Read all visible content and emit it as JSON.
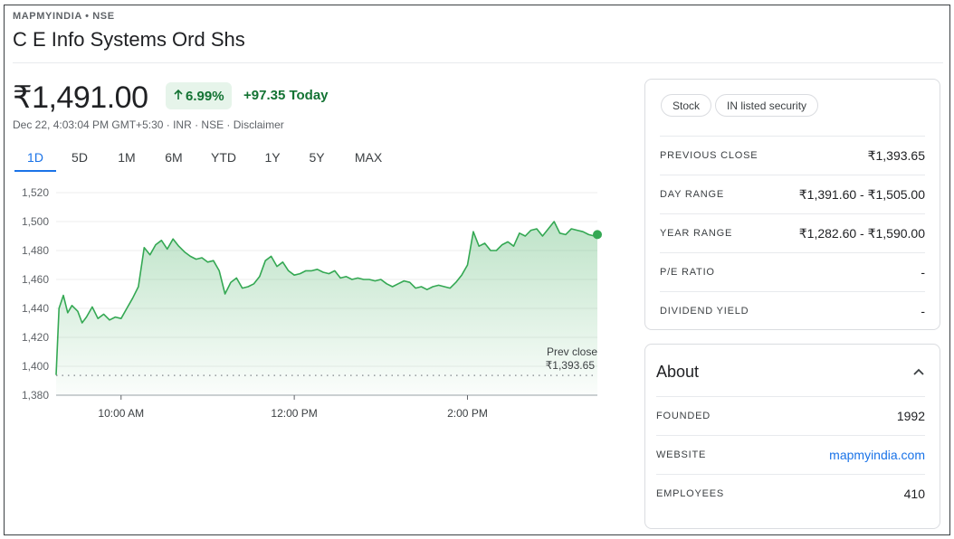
{
  "header": {
    "ticker": "MAPMYINDIA • NSE",
    "company": "C E Info Systems Ord Shs"
  },
  "quote": {
    "price": "₹1,491.00",
    "change_pct": "6.99%",
    "change_abs": "+97.35",
    "change_period": "Today",
    "meta": "Dec 22, 4:03:04 PM GMT+5:30 · INR · NSE · Disclaimer"
  },
  "tabs": [
    {
      "label": "1D",
      "active": true
    },
    {
      "label": "5D"
    },
    {
      "label": "1M"
    },
    {
      "label": "6M"
    },
    {
      "label": "YTD"
    },
    {
      "label": "1Y"
    },
    {
      "label": "5Y"
    },
    {
      "label": "MAX"
    }
  ],
  "colors": {
    "up": "#137333",
    "line": "#34a853",
    "accent": "#1a73e8"
  },
  "chart_data": {
    "type": "area",
    "ylim": [
      1380,
      1520
    ],
    "y_ticks": [
      "1,520",
      "1,500",
      "1,480",
      "1,460",
      "1,440",
      "1,420",
      "1,400",
      "1,380"
    ],
    "y_tick_values": [
      1520,
      1500,
      1480,
      1460,
      1440,
      1420,
      1400,
      1380
    ],
    "x_ticks": [
      "10:00 AM",
      "12:00 PM",
      "2:00 PM"
    ],
    "x_tick_values": [
      "10:00",
      "12:00",
      "14:00"
    ],
    "xlim": [
      "09:15",
      "15:30"
    ],
    "prev_close_label": "Prev close",
    "prev_close_value_text": "₹1,393.65",
    "prev_close_value": 1393.65,
    "grid": true,
    "series": [
      {
        "x": [
          "09:15",
          "09:17",
          "09:20",
          "09:23",
          "09:26",
          "09:30",
          "09:33",
          "09:36",
          "09:40",
          "09:44",
          "09:48",
          "09:52",
          "09:56",
          "10:00",
          "10:04",
          "10:08",
          "10:12",
          "10:16",
          "10:20",
          "10:24",
          "10:28",
          "10:32",
          "10:36",
          "10:40",
          "10:44",
          "10:48",
          "10:52",
          "10:56",
          "11:00",
          "11:04",
          "11:08",
          "11:12",
          "11:16",
          "11:20",
          "11:24",
          "11:28",
          "11:32",
          "11:36",
          "11:40",
          "11:44",
          "11:48",
          "11:52",
          "11:56",
          "12:00",
          "12:04",
          "12:08",
          "12:12",
          "12:16",
          "12:20",
          "12:24",
          "12:28",
          "12:32",
          "12:36",
          "12:40",
          "12:44",
          "12:48",
          "12:52",
          "12:56",
          "13:00",
          "13:04",
          "13:08",
          "13:12",
          "13:16",
          "13:20",
          "13:24",
          "13:28",
          "13:32",
          "13:36",
          "13:40",
          "13:44",
          "13:48",
          "13:52",
          "13:56",
          "14:00",
          "14:04",
          "14:08",
          "14:12",
          "14:16",
          "14:20",
          "14:24",
          "14:28",
          "14:32",
          "14:36",
          "14:40",
          "14:44",
          "14:48",
          "14:52",
          "14:56",
          "15:00",
          "15:04",
          "15:08",
          "15:12",
          "15:16",
          "15:20",
          "15:24",
          "15:28",
          "15:30"
        ],
        "values": [
          1394,
          1440,
          1449,
          1437,
          1442,
          1438,
          1430,
          1434,
          1441,
          1433,
          1436,
          1432,
          1434,
          1433,
          1440,
          1447,
          1455,
          1482,
          1477,
          1484,
          1487,
          1481,
          1488,
          1483,
          1479,
          1476,
          1474,
          1475,
          1472,
          1473,
          1466,
          1450,
          1458,
          1461,
          1454,
          1455,
          1457,
          1462,
          1473,
          1476,
          1469,
          1472,
          1466,
          1463,
          1464,
          1466,
          1466,
          1467,
          1465,
          1464,
          1466,
          1461,
          1462,
          1460,
          1461,
          1460,
          1460,
          1459,
          1460,
          1457,
          1455,
          1457,
          1459,
          1458,
          1454,
          1455,
          1453,
          1455,
          1456,
          1455,
          1454,
          1458,
          1463,
          1470,
          1493,
          1483,
          1485,
          1480,
          1480,
          1484,
          1486,
          1483,
          1492,
          1490,
          1494,
          1495,
          1490,
          1495,
          1500,
          1492,
          1491,
          1495,
          1494,
          1493,
          1491,
          1490,
          1491
        ]
      }
    ]
  },
  "stats": {
    "chips": [
      "Stock",
      "IN listed security"
    ],
    "rows": [
      {
        "label": "PREVIOUS CLOSE",
        "value": "₹1,393.65"
      },
      {
        "label": "DAY RANGE",
        "value": "₹1,391.60 - ₹1,505.00"
      },
      {
        "label": "YEAR RANGE",
        "value": "₹1,282.60 - ₹1,590.00"
      },
      {
        "label": "P/E RATIO",
        "value": "-"
      },
      {
        "label": "DIVIDEND YIELD",
        "value": "-"
      }
    ]
  },
  "about": {
    "title": "About",
    "rows": [
      {
        "label": "FOUNDED",
        "value": "1992"
      },
      {
        "label": "WEBSITE",
        "value": "mapmyindia.com"
      },
      {
        "label": "EMPLOYEES",
        "value": "410"
      }
    ]
  }
}
